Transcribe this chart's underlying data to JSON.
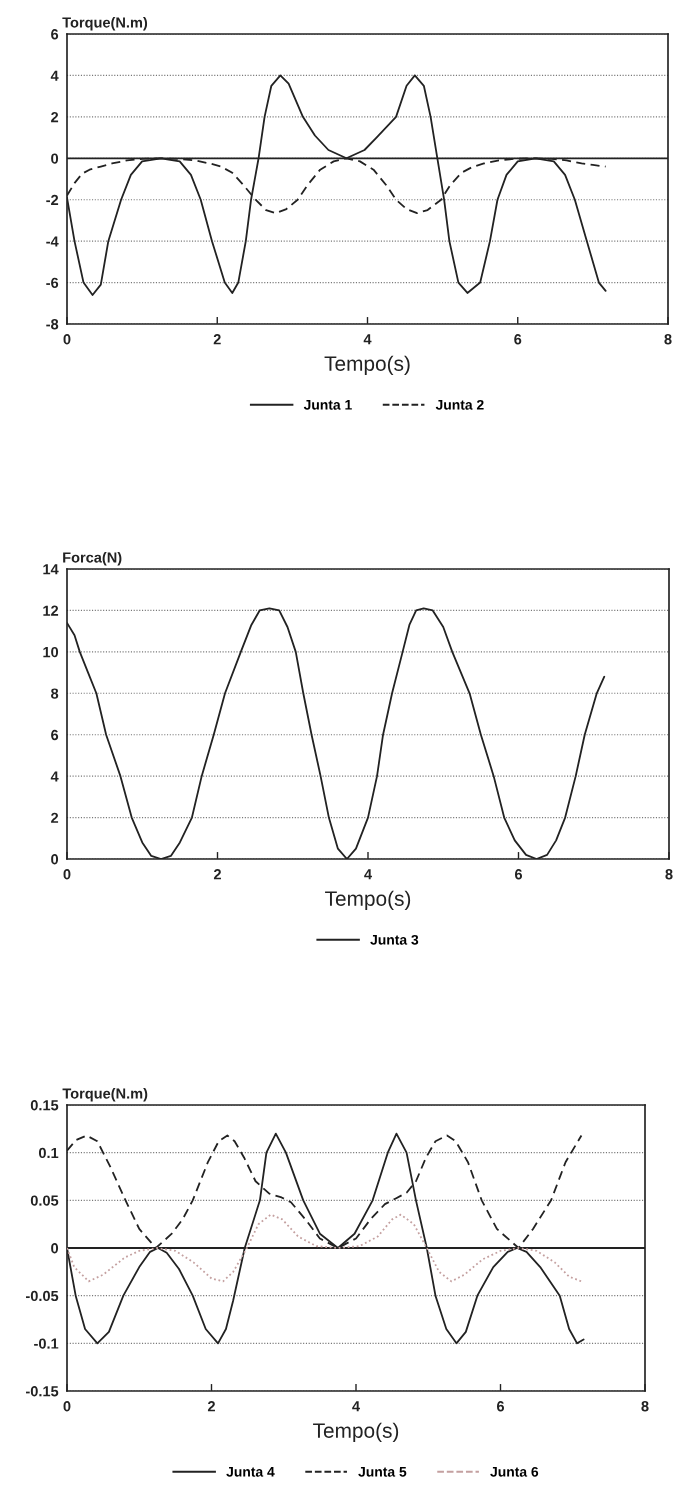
{
  "chart_data": [
    {
      "type": "line",
      "ylabel": "Torque(N.m)",
      "xlabel": "Tempo(s)",
      "xlim": [
        0,
        8
      ],
      "ylim": [
        -8,
        6
      ],
      "xticks": [
        0,
        2,
        4,
        6,
        8
      ],
      "yticks": [
        -8,
        -6,
        -4,
        -2,
        0,
        2,
        4,
        6
      ],
      "grid": "y",
      "legend": "bottom",
      "ref_lines": [
        {
          "axis": "y",
          "value": 0,
          "color": "#222222"
        }
      ],
      "series": [
        {
          "name": "Junta 1",
          "color": "#222222",
          "line_style": "solid",
          "x": [
            0,
            0.1,
            0.22,
            0.34,
            0.45,
            0.55,
            0.72,
            0.85,
            1.0,
            1.25,
            1.5,
            1.65,
            1.78,
            1.93,
            2.1,
            2.2,
            2.28,
            2.38,
            2.45,
            2.55,
            2.63,
            2.72,
            2.84,
            2.95,
            3.14,
            3.3,
            3.48,
            3.72,
            3.96,
            4.12,
            4.38,
            4.52,
            4.63,
            4.75,
            4.84,
            4.93,
            5.02,
            5.09,
            5.21,
            5.33,
            5.5,
            5.63,
            5.73,
            5.85,
            6.0,
            6.24,
            6.48,
            6.63,
            6.76,
            6.92,
            7.08,
            7.17
          ],
          "values": [
            -1.9,
            -4,
            -6,
            -6.6,
            -6.1,
            -4,
            -2,
            -0.8,
            -0.15,
            0,
            -0.15,
            -0.8,
            -2,
            -4,
            -6,
            -6.5,
            -6,
            -4,
            -2,
            0,
            2,
            3.5,
            4,
            3.6,
            2,
            1.1,
            0.4,
            0,
            0.4,
            1,
            2,
            3.5,
            4,
            3.5,
            2,
            0,
            -2,
            -4,
            -6,
            -6.5,
            -6,
            -4,
            -2,
            -0.8,
            -0.15,
            0,
            -0.15,
            -0.8,
            -2,
            -4,
            -6,
            -6.4
          ]
        },
        {
          "name": "Junta 2",
          "color": "#222222",
          "line_style": "dashed",
          "x": [
            0,
            0.1,
            0.2,
            0.3,
            0.45,
            0.6,
            0.8,
            1.0,
            1.25,
            1.5,
            1.7,
            1.9,
            2.05,
            2.2,
            2.35,
            2.51,
            2.65,
            2.78,
            2.92,
            3.07,
            3.2,
            3.37,
            3.55,
            3.72,
            3.9,
            4.08,
            4.25,
            4.38,
            4.52,
            4.66,
            4.8,
            4.98,
            5.1,
            5.25,
            5.38,
            5.55,
            5.75,
            5.95,
            6.2,
            6.45,
            6.65,
            6.85,
            7.0,
            7.17
          ],
          "values": [
            -1.8,
            -1.2,
            -0.75,
            -0.55,
            -0.4,
            -0.25,
            -0.1,
            -0.03,
            0,
            -0.03,
            -0.1,
            -0.25,
            -0.4,
            -0.7,
            -1.3,
            -2,
            -2.5,
            -2.65,
            -2.45,
            -2,
            -1.3,
            -0.55,
            -0.15,
            0,
            -0.15,
            -0.55,
            -1.3,
            -2,
            -2.45,
            -2.65,
            -2.5,
            -2,
            -1.3,
            -0.7,
            -0.45,
            -0.25,
            -0.1,
            -0.03,
            0,
            -0.03,
            -0.1,
            -0.25,
            -0.32,
            -0.4
          ]
        }
      ]
    },
    {
      "type": "line",
      "ylabel": "Forca(N)",
      "xlabel": "Tempo(s)",
      "xlim": [
        0,
        8
      ],
      "ylim": [
        0,
        14
      ],
      "xticks": [
        0,
        2,
        4,
        6,
        8
      ],
      "yticks": [
        0,
        2,
        4,
        6,
        8,
        10,
        12,
        14
      ],
      "grid": "y",
      "legend": "bottom",
      "series": [
        {
          "name": "Junta 3",
          "color": "#222222",
          "line_style": "solid",
          "x": [
            0,
            0.1,
            0.17,
            0.28,
            0.39,
            0.52,
            0.71,
            0.86,
            1.0,
            1.12,
            1.25,
            1.38,
            1.5,
            1.66,
            1.79,
            1.95,
            2.1,
            2.31,
            2.45,
            2.56,
            2.69,
            2.82,
            2.93,
            3.04,
            3.14,
            3.25,
            3.37,
            3.48,
            3.6,
            3.72,
            3.84,
            4.0,
            4.12,
            4.2,
            4.32,
            4.46,
            4.55,
            4.64,
            4.74,
            4.86,
            5.0,
            5.12,
            5.35,
            5.5,
            5.67,
            5.81,
            5.95,
            6.1,
            6.24,
            6.38,
            6.5,
            6.62,
            6.76,
            6.88,
            7.04,
            7.14
          ],
          "values": [
            11.4,
            10.8,
            10,
            9,
            8,
            6,
            4,
            2,
            0.8,
            0.15,
            0,
            0.15,
            0.8,
            2,
            4,
            6,
            8,
            10,
            11.3,
            12,
            12.1,
            12,
            11.2,
            10,
            8,
            6,
            4,
            2,
            0.5,
            0,
            0.5,
            2,
            4,
            6,
            8,
            10,
            11.3,
            12,
            12.1,
            12,
            11.2,
            10,
            8,
            6,
            4,
            2,
            0.9,
            0.2,
            0,
            0.2,
            0.9,
            2,
            4,
            6,
            8,
            8.8
          ]
        }
      ]
    },
    {
      "type": "line",
      "ylabel": "Torque(N.m)",
      "xlabel": "Tempo(s)",
      "xlim": [
        0,
        8
      ],
      "ylim": [
        -0.15,
        0.15
      ],
      "xticks": [
        0,
        2,
        4,
        6,
        8
      ],
      "yticks": [
        -0.15,
        -0.1,
        -0.05,
        0,
        0.05,
        0.1,
        0.15
      ],
      "grid": "y",
      "legend": "bottom",
      "ref_lines": [
        {
          "axis": "y",
          "value": 0,
          "color": "#222222"
        }
      ],
      "series": [
        {
          "name": "Junta 4",
          "color": "#222222",
          "line_style": "solid",
          "x": [
            0,
            0.06,
            0.12,
            0.25,
            0.42,
            0.58,
            0.78,
            1.0,
            1.15,
            1.26,
            1.38,
            1.55,
            1.74,
            1.92,
            2.09,
            2.2,
            2.3,
            2.46,
            2.67,
            2.76,
            2.89,
            3.03,
            3.27,
            3.5,
            3.75,
            3.98,
            4.23,
            4.44,
            4.56,
            4.7,
            4.83,
            4.98,
            5.1,
            5.25,
            5.39,
            5.52,
            5.68,
            5.9,
            6.1,
            6.23,
            6.36,
            6.55,
            6.82,
            6.95,
            7.06,
            7.15
          ],
          "values": [
            0,
            -0.025,
            -0.05,
            -0.085,
            -0.1,
            -0.088,
            -0.05,
            -0.02,
            -0.004,
            0,
            -0.005,
            -0.022,
            -0.05,
            -0.085,
            -0.1,
            -0.085,
            -0.055,
            0,
            0.05,
            0.1,
            0.12,
            0.1,
            0.05,
            0.015,
            0,
            0.015,
            0.05,
            0.1,
            0.12,
            0.1,
            0.05,
            0,
            -0.05,
            -0.085,
            -0.1,
            -0.088,
            -0.05,
            -0.02,
            -0.004,
            0,
            -0.004,
            -0.02,
            -0.05,
            -0.085,
            -0.1,
            -0.096
          ]
        },
        {
          "name": "Junta 5",
          "color": "#222222",
          "line_style": "dashed",
          "x": [
            0,
            0.12,
            0.27,
            0.42,
            0.6,
            0.81,
            1.0,
            1.23,
            1.45,
            1.6,
            1.74,
            1.95,
            2.1,
            2.22,
            2.32,
            2.45,
            2.61,
            2.8,
            2.97,
            3.1,
            3.3,
            3.5,
            3.75,
            4.0,
            4.2,
            4.4,
            4.55,
            4.7,
            4.83,
            4.97,
            5.1,
            5.26,
            5.38,
            5.55,
            5.74,
            5.95,
            6.25,
            6.45,
            6.7,
            6.9,
            7.12
          ],
          "values": [
            0.102,
            0.113,
            0.118,
            0.112,
            0.085,
            0.05,
            0.02,
            0,
            0.015,
            0.03,
            0.05,
            0.09,
            0.112,
            0.118,
            0.112,
            0.095,
            0.07,
            0.057,
            0.053,
            0.048,
            0.03,
            0.01,
            0,
            0.01,
            0.03,
            0.046,
            0.052,
            0.058,
            0.07,
            0.095,
            0.112,
            0.118,
            0.112,
            0.09,
            0.05,
            0.02,
            0,
            0.02,
            0.05,
            0.09,
            0.118
          ]
        },
        {
          "name": "Junta 6",
          "color": "#c4a0a0",
          "line_style": "dotted",
          "x": [
            0,
            0.1,
            0.3,
            0.5,
            0.8,
            1.0,
            1.25,
            1.5,
            1.75,
            2.0,
            2.16,
            2.3,
            2.49,
            2.65,
            2.82,
            2.98,
            3.2,
            3.45,
            3.75,
            4.05,
            4.3,
            4.5,
            4.62,
            4.8,
            4.98,
            5.15,
            5.32,
            5.5,
            5.75,
            6.0,
            6.25,
            6.5,
            6.75,
            6.95,
            7.12
          ],
          "values": [
            0,
            -0.02,
            -0.035,
            -0.028,
            -0.01,
            -0.003,
            0,
            -0.003,
            -0.015,
            -0.032,
            -0.035,
            -0.025,
            0,
            0.025,
            0.035,
            0.03,
            0.012,
            0.002,
            0,
            0.002,
            0.012,
            0.03,
            0.035,
            0.025,
            0,
            -0.025,
            -0.035,
            -0.028,
            -0.012,
            -0.003,
            0,
            -0.003,
            -0.015,
            -0.03,
            -0.035
          ]
        }
      ]
    }
  ]
}
